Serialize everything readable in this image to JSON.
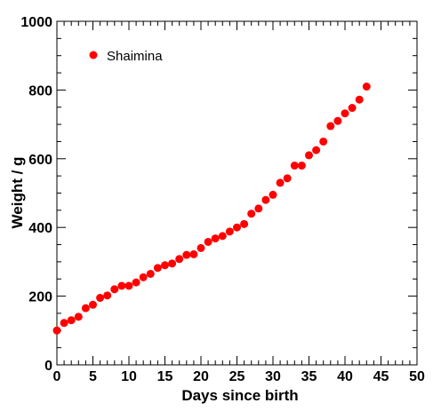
{
  "chart_data": {
    "type": "scatter",
    "xlabel": "Days since birth",
    "ylabel": "Weight / g",
    "xlim": [
      0,
      50
    ],
    "ylim": [
      0,
      1000
    ],
    "x_major_ticks": [
      0,
      5,
      10,
      15,
      20,
      25,
      30,
      35,
      40,
      45,
      50
    ],
    "y_major_ticks": [
      0,
      200,
      400,
      600,
      800,
      1000
    ],
    "grid": false,
    "legend_position": "top-left",
    "series": [
      {
        "name": "Shaimina",
        "color": "#ff0000",
        "marker": "circle",
        "x": [
          0,
          1,
          2,
          3,
          4,
          5,
          6,
          7,
          8,
          9,
          10,
          11,
          12,
          13,
          14,
          15,
          16,
          17,
          18,
          19,
          20,
          21,
          22,
          23,
          24,
          25,
          26,
          27,
          28,
          29,
          30,
          31,
          32,
          33,
          34,
          35,
          36,
          37,
          38,
          39,
          40,
          41,
          42,
          43
        ],
        "y": [
          100,
          122,
          130,
          140,
          165,
          175,
          195,
          202,
          220,
          230,
          230,
          240,
          255,
          265,
          282,
          290,
          295,
          308,
          320,
          322,
          340,
          358,
          368,
          375,
          388,
          400,
          410,
          440,
          455,
          480,
          495,
          530,
          543,
          580,
          580,
          610,
          625,
          650,
          695,
          710,
          732,
          748,
          772,
          810
        ]
      }
    ]
  }
}
